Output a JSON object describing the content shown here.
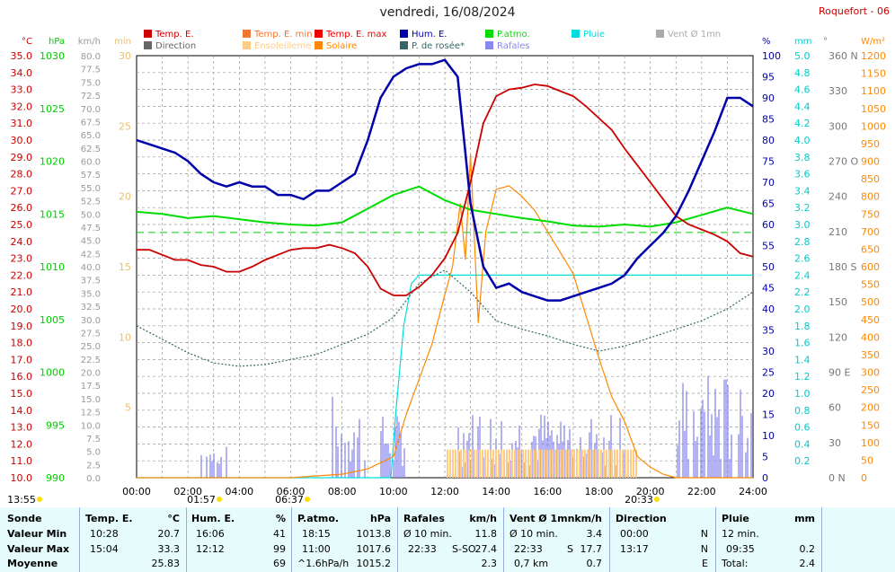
{
  "header": {
    "title": "vendredi, 16/08/2024",
    "station": "Roquefort - 06"
  },
  "legend": [
    {
      "label": "Temp. E.",
      "color": "#cc0000"
    },
    {
      "label": "Temp. E. min",
      "color": "#ee7733"
    },
    {
      "label": "Temp. E. max",
      "color": "#ee0000"
    },
    {
      "label": "Hum. E.",
      "color": "#0000aa"
    },
    {
      "label": "P.atmo.",
      "color": "#00dd00"
    },
    {
      "label": "Pluie",
      "color": "#00dddd"
    },
    {
      "label": "Vent Ø 1mn",
      "color": "#aaaaaa"
    },
    {
      "label": "Direction",
      "color": "#666666"
    },
    {
      "label": "Ensoleilleme",
      "color": "#ffcc88"
    },
    {
      "label": "Solaire",
      "color": "#ff8800"
    },
    {
      "label": "P. de rosée*",
      "color": "#336666"
    },
    {
      "label": "Rafales",
      "color": "#8888ee"
    }
  ],
  "axis_units": {
    "temp": "°C",
    "press": "hPa",
    "wind": "km/h",
    "sun": "min",
    "hum": "%",
    "rain": "mm",
    "dir": "°",
    "solar": "W/m²"
  },
  "chart_data": {
    "type": "line",
    "title": "vendredi, 16/08/2024",
    "x_ticks": [
      "00:00",
      "02:00",
      "04:00",
      "06:00",
      "08:00",
      "10:00",
      "12:00",
      "14:00",
      "16:00",
      "18:00",
      "20:00",
      "22:00",
      "24:00"
    ],
    "axes": {
      "temp": {
        "unit": "°C",
        "range": [
          10,
          35
        ],
        "step": 1
      },
      "press": {
        "unit": "hPa",
        "range": [
          990,
          1030
        ],
        "step": 5
      },
      "wind": {
        "unit": "km/h",
        "range": [
          0,
          80
        ],
        "step": 2.5
      },
      "sun": {
        "unit": "min",
        "range": [
          0,
          30
        ],
        "step": 5
      },
      "hum": {
        "unit": "%",
        "range": [
          0,
          100
        ],
        "step": 5
      },
      "rain": {
        "unit": "mm",
        "range": [
          0,
          5
        ],
        "step": 0.2
      },
      "dir": {
        "unit": "°",
        "ticks": [
          "0 N",
          "30",
          "60",
          "90 E",
          "120",
          "150",
          "180 S",
          "210",
          "240",
          "270 O",
          "300",
          "330",
          "360 N"
        ]
      },
      "solar": {
        "unit": "W/m²",
        "range": [
          0,
          1200
        ],
        "step": 50
      }
    },
    "series": [
      {
        "name": "Temp. E.",
        "color": "#cc0000",
        "x": [
          0,
          0.5,
          1,
          1.5,
          2,
          2.5,
          3,
          3.5,
          4,
          4.5,
          5,
          5.5,
          6,
          6.5,
          7,
          7.5,
          8,
          8.5,
          9,
          9.5,
          10,
          10.5,
          11,
          11.5,
          12,
          12.5,
          13,
          13.5,
          14,
          14.5,
          15,
          15.5,
          16,
          16.5,
          17,
          17.5,
          18,
          18.5,
          19,
          19.5,
          20,
          20.5,
          21,
          21.5,
          22,
          22.5,
          23,
          23.5,
          24
        ],
        "y": [
          23.5,
          23.5,
          23.2,
          22.9,
          22.9,
          22.6,
          22.5,
          22.2,
          22.2,
          22.5,
          22.9,
          23.2,
          23.5,
          23.6,
          23.6,
          23.8,
          23.6,
          23.3,
          22.5,
          21.2,
          20.8,
          20.8,
          21.3,
          22.0,
          23.0,
          24.5,
          27.5,
          31.0,
          32.6,
          33.0,
          33.1,
          33.3,
          33.2,
          32.9,
          32.6,
          32.0,
          31.3,
          30.6,
          29.5,
          28.5,
          27.5,
          26.5,
          25.5,
          25.0,
          24.7,
          24.4,
          24.0,
          23.3,
          23.1
        ]
      },
      {
        "name": "Hum. E.",
        "color": "#0000aa",
        "x": [
          0,
          0.5,
          1,
          1.5,
          2,
          2.5,
          3,
          3.5,
          4,
          4.5,
          5,
          5.5,
          6,
          6.5,
          7,
          7.5,
          8,
          8.5,
          9,
          9.5,
          10,
          10.5,
          11,
          11.5,
          12,
          12.5,
          13,
          13.5,
          14,
          14.5,
          15,
          15.5,
          16,
          16.5,
          17,
          17.5,
          18,
          18.5,
          19,
          19.5,
          20,
          20.5,
          21,
          21.5,
          22,
          22.5,
          23,
          23.5,
          24
        ],
        "y": [
          80,
          79,
          78,
          77,
          75,
          72,
          70,
          69,
          70,
          69,
          69,
          67,
          67,
          66,
          68,
          68,
          70,
          72,
          80,
          90,
          95,
          97,
          98,
          98,
          99,
          95,
          65,
          50,
          45,
          46,
          44,
          43,
          42,
          42,
          43,
          44,
          45,
          46,
          48,
          52,
          55,
          58,
          62,
          68,
          75,
          82,
          90,
          90,
          88
        ]
      },
      {
        "name": "P.atmo.",
        "color": "#00dd00",
        "x": [
          0,
          1,
          2,
          3,
          4,
          5,
          6,
          7,
          8,
          9,
          10,
          11,
          12,
          13,
          14,
          15,
          16,
          17,
          18,
          19,
          20,
          21,
          22,
          23,
          24
        ],
        "y": [
          1015.2,
          1015.0,
          1014.6,
          1014.8,
          1014.5,
          1014.2,
          1014.0,
          1013.9,
          1014.2,
          1015.5,
          1016.8,
          1017.6,
          1016.3,
          1015.4,
          1015.0,
          1014.6,
          1014.3,
          1013.9,
          1013.8,
          1014.0,
          1013.8,
          1014.2,
          1014.9,
          1015.6,
          1015.0
        ]
      },
      {
        "name": "P. de rosée*",
        "color": "#336666",
        "x": [
          0,
          1,
          2,
          3,
          4,
          5,
          6,
          7,
          8,
          9,
          10,
          11,
          12,
          13,
          14,
          15,
          16,
          17,
          18,
          19,
          20,
          21,
          22,
          23,
          24
        ],
        "y": [
          19.0,
          18.2,
          17.4,
          16.8,
          16.6,
          16.7,
          17.0,
          17.3,
          17.9,
          18.5,
          19.5,
          21.5,
          22.3,
          21.0,
          19.3,
          18.8,
          18.4,
          17.9,
          17.5,
          17.8,
          18.3,
          18.8,
          19.3,
          20.0,
          21.0
        ]
      },
      {
        "name": "Solaire",
        "color": "#ff8800",
        "x": [
          0,
          6,
          7,
          8,
          9,
          10,
          10.5,
          11,
          11.5,
          12,
          12.3,
          12.6,
          12.8,
          13,
          13.3,
          13.6,
          14,
          14.5,
          15,
          15.5,
          16,
          16.5,
          17,
          17.5,
          18,
          18.5,
          19,
          19.5,
          20,
          20.5,
          21,
          24
        ],
        "y": [
          0,
          0,
          5,
          10,
          25,
          60,
          180,
          280,
          380,
          520,
          600,
          780,
          620,
          920,
          440,
          700,
          820,
          830,
          800,
          760,
          700,
          640,
          580,
          460,
          340,
          230,
          160,
          60,
          30,
          10,
          0,
          0
        ]
      },
      {
        "name": "Pluie",
        "color": "#00dddd",
        "x": [
          0,
          9.9,
          10.1,
          10.4,
          10.7,
          11.0,
          24
        ],
        "y": [
          0,
          0,
          0.8,
          1.8,
          2.3,
          2.4,
          2.4
        ]
      }
    ],
    "reference_line": {
      "label": "",
      "hPa": 1013.25
    }
  },
  "sun_events": [
    {
      "label": "13:55",
      "dir": "up"
    },
    {
      "label": "01:57",
      "dir": "down"
    },
    {
      "label": "06:37",
      "dir": "up"
    },
    {
      "label": "20:33",
      "dir": "down"
    }
  ],
  "summary": {
    "rows": [
      "Sonde",
      "Valeur Min",
      "Valeur Max",
      "Moyenne"
    ],
    "temp": {
      "head": "Temp. E.",
      "unit": "°C",
      "min_t": "10:28",
      "min_v": "20.7",
      "max_t": "15:04",
      "max_v": "33.3",
      "avg": "25.83"
    },
    "hum": {
      "head": "Hum. E.",
      "unit": "%",
      "min_t": "16:06",
      "min_v": "41",
      "max_t": "12:12",
      "max_v": "99",
      "avg": "69"
    },
    "press": {
      "head": "P.atmo.",
      "unit": "hPa",
      "min_t": "18:15",
      "min_v": "1013.8",
      "max_t": "11:00",
      "max_v": "1017.6",
      "avg_t": "^1.6hPa/h",
      "avg": "1015.2"
    },
    "gust": {
      "head": "Rafales",
      "unit": "km/h",
      "min_t": "Ø 10 min.",
      "min_v": "11.8",
      "max_t": "22:33",
      "max_d": "S-SO",
      "max_v": "27.4",
      "avg": "2.3"
    },
    "wind": {
      "head": "Vent Ø 1mn",
      "unit": "km/h",
      "min_t": "Ø 10 min.",
      "min_v": "3.4",
      "max_t": "22:33",
      "max_d": "S",
      "max_v": "17.7",
      "avg_t": "0,7 km",
      "avg": "0.7"
    },
    "dir": {
      "head": "Direction",
      "min_t": "00:00",
      "min_v": "N",
      "max_t": "13:17",
      "max_v": "N",
      "avg": "E"
    },
    "rain": {
      "head": "Pluie",
      "unit": "mm",
      "min_t": "12 min.",
      "max_t": "09:35",
      "max_v": "0.2",
      "avg_t": "Total:",
      "avg": "2.4"
    }
  }
}
